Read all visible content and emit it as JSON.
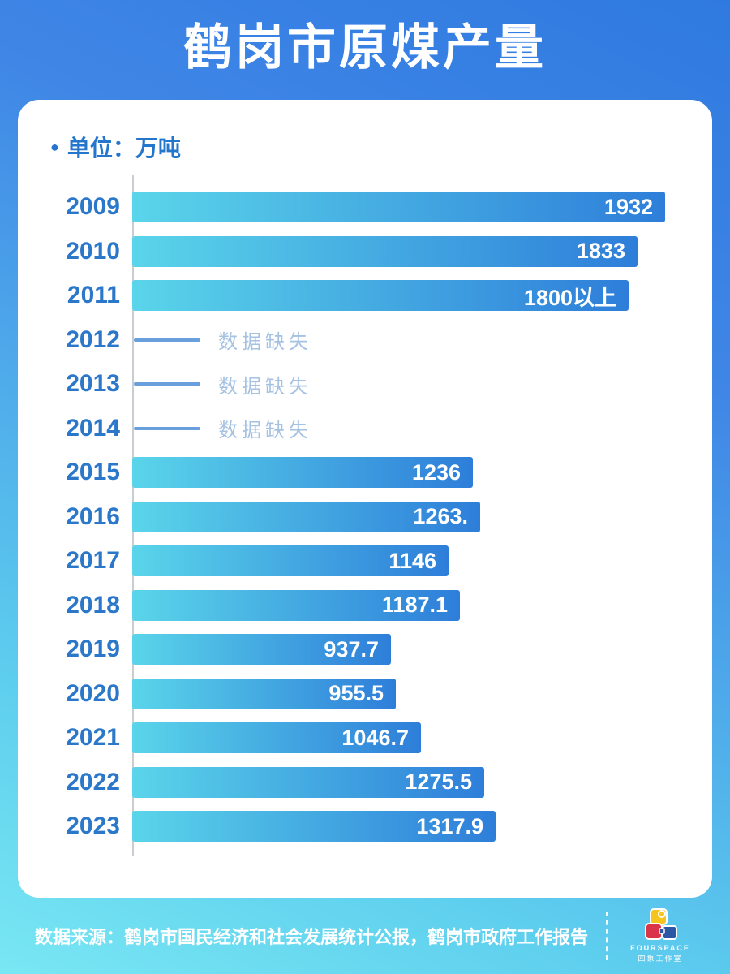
{
  "page": {
    "title": "鹤岗市原煤产量",
    "unit_bullet": "●",
    "unit_label": "单位：万吨"
  },
  "missing": {
    "label": "数据缺失"
  },
  "footer": {
    "source": "数据来源：鹤岗市国民经济和社会发展统计公报，鹤岗市政府工作报告",
    "brand_name": "FOURSPACE",
    "brand_cn": "四象工作室"
  },
  "colors": {
    "background_top": "#2f7ae0",
    "background_bottom": "#79e7f3",
    "bar_gradient_start": "#5ad5ea",
    "bar_gradient_end": "#2e7ed9",
    "year_text": "#2b77c9",
    "unit_text": "#2376cc",
    "missing_dash": "#6a9fde",
    "missing_text": "#a6c2e2",
    "axis_line": "#c9ccd1",
    "value_text": "#ffffff",
    "logo_yellow": "#f5c51e",
    "logo_red": "#d9344a",
    "logo_blue": "#2b55a5"
  },
  "chart_data": {
    "type": "bar",
    "orientation": "horizontal",
    "title": "鹤岗市原煤产量",
    "unit": "万吨",
    "categories": [
      "2009",
      "2010",
      "2011",
      "2012",
      "2013",
      "2014",
      "2015",
      "2016",
      "2017",
      "2018",
      "2019",
      "2020",
      "2021",
      "2022",
      "2023"
    ],
    "values": [
      1932,
      1833,
      1800,
      null,
      null,
      null,
      1236,
      1263,
      1146,
      1187.1,
      937.7,
      955.5,
      1046.7,
      1275.5,
      1317.9
    ],
    "value_labels": [
      "1932",
      "1833",
      "1800以上",
      null,
      null,
      null,
      "1236",
      "1263.",
      "1146",
      "1187.1",
      "937.7",
      "955.5",
      "1046.7",
      "1275.5",
      "1317.9"
    ],
    "missing_indices": [
      3,
      4,
      5
    ],
    "xlim": [
      0,
      1932
    ],
    "grid": false,
    "legend": false
  }
}
